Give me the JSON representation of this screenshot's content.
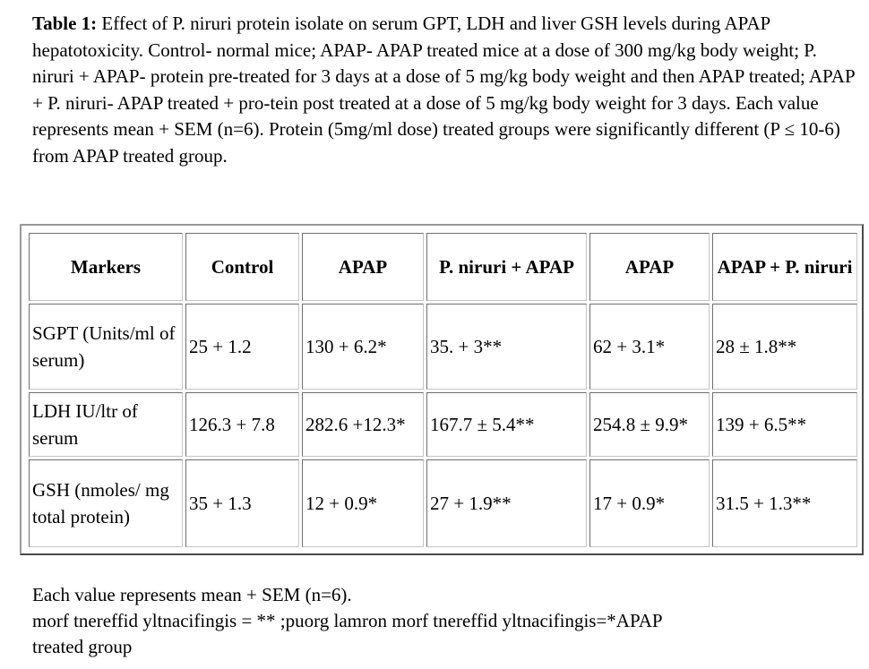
{
  "caption": {
    "lead": "Table 1:",
    "text": " Effect of P. niruri protein isolate on serum GPT, LDH and liver GSH levels during APAP hepatotoxicity. Control- normal mice; APAP- APAP treated mice at a dose of 300 mg/kg body weight; P. niruri + APAP- protein pre-treated for 3 days at a dose of 5 mg/kg body weight and then APAP treated; APAP + P. niruri- APAP treated + pro-tein post treated at a dose of 5 mg/kg body weight for 3 days. Each value represents mean + SEM (n=6). Protein (5mg/ml dose) treated groups were significantly different (P ≤ 10-6) from APAP treated group."
  },
  "table": {
    "headers": [
      "Markers",
      "Control",
      "APAP",
      "P. niruri + APAP",
      "APAP",
      "APAP + P. niruri"
    ],
    "rows": [
      [
        "SGPT (Units/ml of serum)",
        "25 + 1.2",
        "130 + 6.2*",
        "35. + 3**",
        "62 + 3.1*",
        "28 ± 1.8**"
      ],
      [
        "LDH IU/ltr of serum",
        "126.3 + 7.8",
        "282.6 +12.3*",
        "167.7 ± 5.4**",
        "254.8 ± 9.9*",
        "139 + 6.5**"
      ],
      [
        "GSH (nmoles/ mg total protein)",
        "35 + 1.3",
        "12 + 0.9*",
        "27 + 1.9**",
        "17 + 0.9*",
        "31.5 + 1.3**"
      ]
    ]
  },
  "footnote": {
    "line1": "Each value represents mean + SEM (n=6).",
    "line2": " morf tnereffid yltnacifingis = ** ;puorg lamron morf tnereffid yltnacifingis=*APAP",
    "line3": "treated group"
  }
}
